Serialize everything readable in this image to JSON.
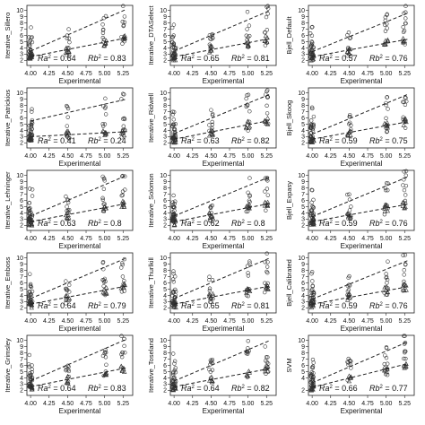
{
  "chart_data": {
    "type": "scatter",
    "shared": {
      "xlabel": "Experimental",
      "x_ticks": [
        "4.00",
        "4.25",
        "4.50",
        "4.75",
        "5.00",
        "5.25"
      ],
      "xlim": [
        3.95,
        5.38
      ],
      "ylim": [
        1.2,
        10.8
      ],
      "experimental_levels": [
        4.0,
        4.5,
        5.0,
        5.25
      ],
      "grid": false,
      "legend": "none",
      "marker_circle_color": "#333333",
      "marker_triangle_color": "#333333",
      "line_color": "#222222"
    },
    "panels": [
      {
        "ylabel": "Iterative_Sillero",
        "ra": "0.64",
        "rb": "0.83",
        "y_ticks": [
          "2",
          "3",
          "4",
          "5",
          "6",
          "7",
          "8",
          "9",
          "10"
        ],
        "line_a": [
          [
            4.0,
            3.5
          ],
          [
            5.3,
            10.2
          ]
        ],
        "line_b": [
          [
            4.0,
            2.6
          ],
          [
            5.3,
            5.6
          ]
        ]
      },
      {
        "ylabel": "Iterative_DTASelect",
        "ra": "0.65",
        "rb": "0.81",
        "y_ticks": [
          "2",
          "3",
          "4",
          "5",
          "6",
          "7",
          "8",
          "9",
          "10"
        ],
        "line_a": [
          [
            4.0,
            3.5
          ],
          [
            5.3,
            10.0
          ]
        ],
        "line_b": [
          [
            4.0,
            2.6
          ],
          [
            5.3,
            5.5
          ]
        ]
      },
      {
        "ylabel": "Bjell_Default",
        "ra": "0.57",
        "rb": "0.76",
        "y_ticks": [
          "2",
          "3",
          "4",
          "5",
          "6",
          "7",
          "8",
          "9",
          "10"
        ],
        "line_a": [
          [
            4.0,
            3.4
          ],
          [
            5.3,
            9.6
          ]
        ],
        "line_b": [
          [
            4.0,
            2.6
          ],
          [
            5.3,
            5.4
          ]
        ]
      },
      {
        "ylabel": "Iterative_Patrickios",
        "ra": "0.41",
        "rb": "0.24",
        "y_ticks": [
          "2",
          "3",
          "4",
          "5",
          "6",
          "7",
          "8",
          "9",
          "10"
        ],
        "line_a": [
          [
            4.0,
            5.5
          ],
          [
            5.3,
            9.0
          ]
        ],
        "line_b": [
          [
            4.0,
            3.0
          ],
          [
            5.3,
            3.8
          ]
        ]
      },
      {
        "ylabel": "Iterative_Ridwell",
        "ra": "0.63",
        "rb": "0.82",
        "y_ticks": [
          "2",
          "3",
          "4",
          "5",
          "6",
          "7",
          "8",
          "9",
          "10"
        ],
        "line_a": [
          [
            4.0,
            3.5
          ],
          [
            5.3,
            9.8
          ]
        ],
        "line_b": [
          [
            4.0,
            2.6
          ],
          [
            5.3,
            5.6
          ]
        ]
      },
      {
        "ylabel": "Bjell_Skoog",
        "ra": "0.59",
        "rb": "0.75",
        "y_ticks": [
          "2",
          "3",
          "4",
          "5",
          "6",
          "7",
          "8",
          "9",
          "10"
        ],
        "line_a": [
          [
            4.0,
            3.4
          ],
          [
            5.3,
            9.8
          ]
        ],
        "line_b": [
          [
            4.0,
            2.6
          ],
          [
            5.3,
            5.4
          ]
        ]
      },
      {
        "ylabel": "Iterative_Lehninger",
        "ra": "0.63",
        "rb": "0.8",
        "y_ticks": [
          "2",
          "3",
          "4",
          "5",
          "6",
          "7",
          "8",
          "9",
          "10"
        ],
        "line_a": [
          [
            4.0,
            3.5
          ],
          [
            5.3,
            10.0
          ]
        ],
        "line_b": [
          [
            4.0,
            2.6
          ],
          [
            5.3,
            5.5
          ]
        ]
      },
      {
        "ylabel": "Iterative_Solomon",
        "ra": "0.62",
        "rb": "0.8",
        "y_ticks": [
          "2",
          "3",
          "4",
          "5",
          "6",
          "7",
          "8",
          "9",
          "10"
        ],
        "line_a": [
          [
            4.0,
            3.5
          ],
          [
            5.3,
            9.8
          ]
        ],
        "line_b": [
          [
            4.0,
            2.6
          ],
          [
            5.3,
            5.5
          ]
        ]
      },
      {
        "ylabel": "Bjell_Expasy",
        "ra": "0.59",
        "rb": "0.76",
        "y_ticks": [
          "2",
          "3",
          "4",
          "5",
          "6",
          "7",
          "8",
          "9",
          "10"
        ],
        "line_a": [
          [
            4.0,
            3.4
          ],
          [
            5.3,
            9.8
          ]
        ],
        "line_b": [
          [
            4.0,
            2.6
          ],
          [
            5.3,
            5.4
          ]
        ]
      },
      {
        "ylabel": "Iterative_Emboss",
        "ra": "0.64",
        "rb": "0.79",
        "y_ticks": [
          "2",
          "3",
          "4",
          "5",
          "6",
          "7",
          "8",
          "9",
          "10"
        ],
        "line_a": [
          [
            4.0,
            3.5
          ],
          [
            5.3,
            10.0
          ]
        ],
        "line_b": [
          [
            4.0,
            2.6
          ],
          [
            5.3,
            5.5
          ]
        ]
      },
      {
        "ylabel": "Iterative_Thurlkill",
        "ra": "0.65",
        "rb": "0.81",
        "y_ticks": [
          "2",
          "3",
          "4",
          "5",
          "6",
          "7",
          "8",
          "9",
          "10"
        ],
        "line_a": [
          [
            4.0,
            3.5
          ],
          [
            5.3,
            10.0
          ]
        ],
        "line_b": [
          [
            4.0,
            2.6
          ],
          [
            5.3,
            5.5
          ]
        ]
      },
      {
        "ylabel": "Bjell_Calibrated",
        "ra": "0.59",
        "rb": "0.76",
        "y_ticks": [
          "2",
          "3",
          "4",
          "5",
          "6",
          "7",
          "8",
          "9",
          "10"
        ],
        "line_a": [
          [
            4.0,
            3.4
          ],
          [
            5.3,
            9.6
          ]
        ],
        "line_b": [
          [
            4.0,
            2.6
          ],
          [
            5.3,
            5.4
          ]
        ]
      },
      {
        "ylabel": "Iterative_Grimsley",
        "ra": "0.64",
        "rb": "0.83",
        "y_ticks": [
          "2",
          "3",
          "4",
          "5",
          "6",
          "7",
          "8",
          "9",
          "10"
        ],
        "line_a": [
          [
            4.0,
            3.5
          ],
          [
            5.3,
            10.2
          ]
        ],
        "line_b": [
          [
            4.0,
            2.6
          ],
          [
            5.3,
            5.6
          ]
        ]
      },
      {
        "ylabel": "Iterative_Toseland",
        "ra": "0.64",
        "rb": "0.82",
        "y_ticks": [
          "2",
          "3",
          "4",
          "5",
          "6",
          "7",
          "8",
          "9",
          "10"
        ],
        "line_a": [
          [
            4.0,
            3.5
          ],
          [
            5.3,
            10.0
          ]
        ],
        "line_b": [
          [
            4.0,
            2.6
          ],
          [
            5.3,
            5.5
          ]
        ]
      },
      {
        "ylabel": "SVM",
        "ra": "0.66",
        "rb": "0.77",
        "y_ticks": [
          "2",
          "4",
          "5",
          "6",
          "7",
          "8",
          "9",
          "10"
        ],
        "line_a": [
          [
            4.0,
            3.2
          ],
          [
            5.3,
            9.8
          ]
        ],
        "line_b": [
          [
            4.0,
            2.5
          ],
          [
            5.3,
            6.3
          ]
        ]
      }
    ]
  }
}
